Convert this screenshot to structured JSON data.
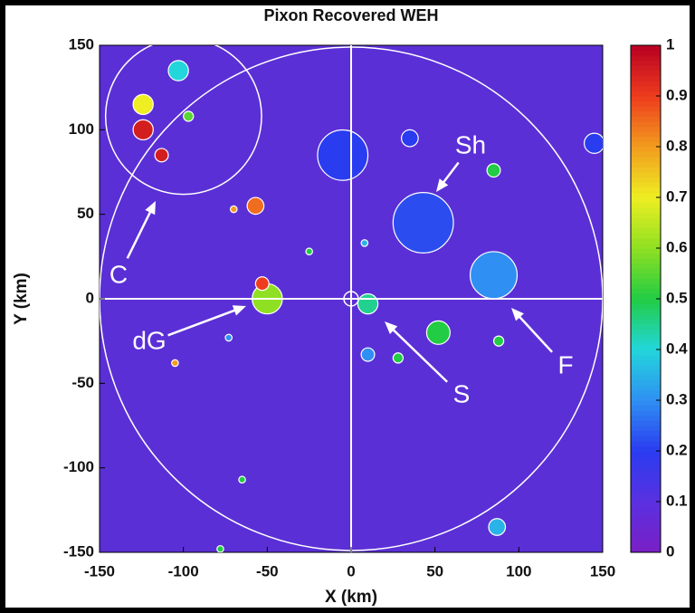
{
  "chart_data": {
    "type": "image",
    "title": "Pixon Recovered WEH",
    "x_label": "X (km)",
    "y_label": "Y (km)",
    "xlim": [
      -150,
      150
    ],
    "ylim": [
      -150,
      150
    ],
    "xticks": [
      -150,
      -100,
      -50,
      0,
      50,
      100,
      150
    ],
    "yticks": [
      -150,
      -100,
      -50,
      0,
      50,
      100,
      150
    ],
    "clim": [
      0,
      1
    ],
    "cticks": [
      0,
      0.1,
      0.2,
      0.3,
      0.4,
      0.5,
      0.6,
      0.7,
      0.8,
      0.9,
      1
    ],
    "annotations": [
      "C",
      "dG",
      "S",
      "Sh",
      "F"
    ],
    "features": [
      {
        "x": -103,
        "y": 135,
        "r": 6,
        "value": 0.4
      },
      {
        "x": -124,
        "y": 115,
        "r": 6,
        "value": 0.7
      },
      {
        "x": -124,
        "y": 100,
        "r": 6,
        "value": 0.95
      },
      {
        "x": -113,
        "y": 85,
        "r": 4,
        "value": 0.95
      },
      {
        "x": -97,
        "y": 108,
        "r": 3,
        "value": 0.55
      },
      {
        "x": -5,
        "y": 85,
        "r": 15,
        "value": 0.2
      },
      {
        "x": 35,
        "y": 95,
        "r": 5,
        "value": 0.2
      },
      {
        "x": 43,
        "y": 45,
        "r": 18,
        "value": 0.22
      },
      {
        "x": 85,
        "y": 76,
        "r": 4,
        "value": 0.5
      },
      {
        "x": 85,
        "y": 14,
        "r": 14,
        "value": 0.3
      },
      {
        "x": 145,
        "y": 92,
        "r": 6,
        "value": 0.2
      },
      {
        "x": -50,
        "y": 0,
        "r": 9,
        "value": 0.6
      },
      {
        "x": -53,
        "y": 9,
        "r": 4,
        "value": 0.9
      },
      {
        "x": -57,
        "y": 55,
        "r": 5,
        "value": 0.85
      },
      {
        "x": -70,
        "y": 53,
        "r": 2,
        "value": 0.8
      },
      {
        "x": 8,
        "y": 33,
        "r": 2,
        "value": 0.35
      },
      {
        "x": -25,
        "y": 28,
        "r": 2,
        "value": 0.5
      },
      {
        "x": 10,
        "y": -3,
        "r": 6,
        "value": 0.45
      },
      {
        "x": 52,
        "y": -20,
        "r": 7,
        "value": 0.5
      },
      {
        "x": 10,
        "y": -33,
        "r": 4,
        "value": 0.3
      },
      {
        "x": 28,
        "y": -35,
        "r": 3,
        "value": 0.5
      },
      {
        "x": 88,
        "y": -25,
        "r": 3,
        "value": 0.5
      },
      {
        "x": -73,
        "y": -23,
        "r": 2,
        "value": 0.3
      },
      {
        "x": -105,
        "y": -38,
        "r": 2,
        "value": 0.8
      },
      {
        "x": -65,
        "y": -107,
        "r": 2,
        "value": 0.5
      },
      {
        "x": 87,
        "y": -135,
        "r": 5,
        "value": 0.35
      },
      {
        "x": -78,
        "y": -148,
        "r": 2,
        "value": 0.5
      }
    ]
  }
}
